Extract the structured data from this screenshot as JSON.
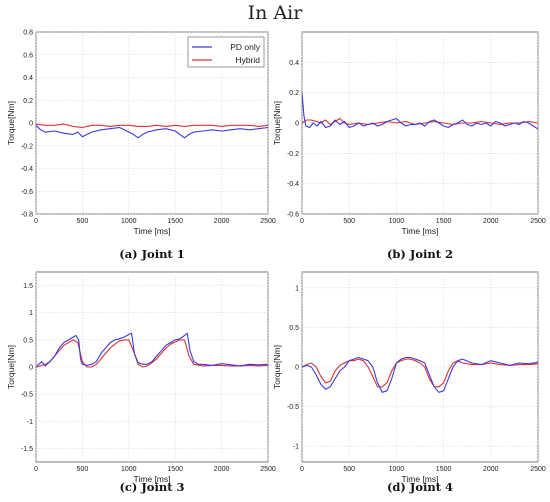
{
  "figure": {
    "title": "In Air"
  },
  "colors": {
    "pd_only": "#3a3ae0",
    "hybrid": "#e03030"
  },
  "legend": {
    "pd_only": "PD only",
    "hybrid": "Hybrid"
  },
  "chart_data": [
    {
      "type": "line",
      "caption": "(a) Joint 1",
      "xlabel": "Time [ms]",
      "ylabel": "Torque[Nm]",
      "xlim": [
        0,
        2500
      ],
      "ylim": [
        -0.8,
        0.8
      ],
      "xticks": [
        0,
        500,
        1000,
        1500,
        2000,
        2500
      ],
      "yticks": [
        -0.8,
        -0.6,
        -0.4,
        -0.2,
        0,
        0.2,
        0.4,
        0.6,
        0.8
      ],
      "ytick_labels": [
        "-0.8",
        "-0.6",
        "-0.4",
        "-0.2",
        "0",
        "0.2",
        "0.4",
        "0.6",
        "0.8"
      ],
      "grid": true,
      "legend": "top-right",
      "series": [
        {
          "name": "PD only",
          "color": "#3a3ae0",
          "x": [
            0,
            50,
            100,
            200,
            300,
            400,
            450,
            500,
            550,
            600,
            700,
            800,
            900,
            950,
            1000,
            1050,
            1100,
            1150,
            1200,
            1300,
            1400,
            1500,
            1550,
            1600,
            1650,
            1700,
            1800,
            1900,
            2000,
            2100,
            2200,
            2300,
            2400,
            2500
          ],
          "y": [
            -0.02,
            -0.06,
            -0.08,
            -0.07,
            -0.09,
            -0.1,
            -0.08,
            -0.12,
            -0.1,
            -0.08,
            -0.06,
            -0.05,
            -0.04,
            -0.06,
            -0.08,
            -0.1,
            -0.13,
            -0.1,
            -0.08,
            -0.06,
            -0.05,
            -0.07,
            -0.1,
            -0.13,
            -0.1,
            -0.08,
            -0.07,
            -0.06,
            -0.07,
            -0.06,
            -0.05,
            -0.06,
            -0.05,
            -0.04
          ]
        },
        {
          "name": "Hybrid",
          "color": "#e03030",
          "x": [
            0,
            100,
            200,
            300,
            400,
            500,
            600,
            700,
            800,
            900,
            1000,
            1100,
            1200,
            1300,
            1400,
            1500,
            1600,
            1700,
            1800,
            1900,
            2000,
            2100,
            2200,
            2300,
            2400,
            2500
          ],
          "y": [
            -0.01,
            -0.02,
            -0.02,
            -0.01,
            -0.03,
            -0.04,
            -0.02,
            -0.02,
            -0.03,
            -0.02,
            -0.02,
            -0.03,
            -0.03,
            -0.02,
            -0.03,
            -0.02,
            -0.03,
            -0.02,
            -0.02,
            -0.02,
            -0.03,
            -0.02,
            -0.02,
            -0.02,
            -0.03,
            -0.02
          ]
        }
      ]
    },
    {
      "type": "line",
      "caption": "(b) Joint 2",
      "xlabel": "Time [ms]",
      "ylabel": "Torque[Nm]",
      "xlim": [
        0,
        2500
      ],
      "ylim": [
        -0.6,
        0.6
      ],
      "xticks": [
        0,
        500,
        1000,
        1500,
        2000,
        2500
      ],
      "yticks": [
        -0.6,
        -0.4,
        -0.2,
        0,
        0.2,
        0.4
      ],
      "ytick_labels": [
        "-0.6",
        "-0.4",
        "-0.2",
        "0",
        "0.2",
        "0.4"
      ],
      "grid": true,
      "series": [
        {
          "name": "PD only",
          "color": "#3a3ae0",
          "x": [
            0,
            20,
            40,
            80,
            120,
            160,
            200,
            250,
            300,
            350,
            400,
            450,
            500,
            550,
            600,
            650,
            700,
            750,
            800,
            850,
            900,
            950,
            1000,
            1050,
            1100,
            1150,
            1200,
            1250,
            1300,
            1350,
            1400,
            1450,
            1500,
            1550,
            1600,
            1650,
            1700,
            1750,
            1800,
            1850,
            1900,
            1950,
            2000,
            2050,
            2100,
            2150,
            2200,
            2250,
            2300,
            2350,
            2400,
            2450,
            2500
          ],
          "y": [
            0.2,
            0.05,
            -0.02,
            -0.03,
            0.0,
            -0.02,
            0.01,
            -0.03,
            -0.02,
            0.02,
            -0.01,
            0.01,
            -0.03,
            -0.02,
            0.0,
            -0.02,
            -0.01,
            0.0,
            -0.02,
            -0.01,
            0.01,
            0.02,
            0.03,
            0.0,
            -0.02,
            -0.01,
            -0.01,
            0.0,
            -0.02,
            0.01,
            0.02,
            0.0,
            -0.02,
            -0.03,
            -0.01,
            0.0,
            0.02,
            -0.01,
            -0.02,
            0.0,
            -0.01,
            0.0,
            -0.02,
            0.01,
            0.0,
            -0.02,
            -0.01,
            0.0,
            -0.01,
            0.01,
            0.0,
            -0.02,
            -0.04
          ]
        },
        {
          "name": "Hybrid",
          "color": "#e03030",
          "x": [
            0,
            50,
            100,
            150,
            200,
            250,
            300,
            350,
            400,
            450,
            500,
            600,
            700,
            800,
            900,
            1000,
            1100,
            1200,
            1300,
            1400,
            1500,
            1600,
            1700,
            1800,
            1900,
            2000,
            2100,
            2200,
            2300,
            2400,
            2500
          ],
          "y": [
            0.0,
            0.02,
            0.02,
            0.01,
            0.0,
            0.02,
            -0.01,
            0.01,
            0.03,
            0.0,
            -0.01,
            0.0,
            -0.01,
            0.0,
            0.01,
            0.0,
            0.01,
            -0.01,
            0.0,
            0.01,
            0.0,
            -0.01,
            0.0,
            0.0,
            0.01,
            0.0,
            -0.01,
            0.0,
            0.0,
            0.01,
            0.0
          ]
        }
      ]
    },
    {
      "type": "line",
      "caption": "(c) Joint 3",
      "xlabel": "Time [ms]",
      "ylabel": "Torque[Nm]",
      "xlim": [
        0,
        2500
      ],
      "ylim": [
        -1.75,
        1.75
      ],
      "xticks": [
        0,
        500,
        1000,
        1500,
        2000,
        2500
      ],
      "yticks": [
        -1.5,
        -1,
        -0.5,
        0,
        0.5,
        1,
        1.5
      ],
      "ytick_labels": [
        "-1.5",
        "-1",
        "-0.5",
        "0",
        "0.5",
        "1",
        "1.5"
      ],
      "grid": true,
      "series": [
        {
          "name": "PD only",
          "color": "#3a3ae0",
          "x": [
            0,
            30,
            60,
            100,
            150,
            200,
            250,
            300,
            350,
            400,
            430,
            460,
            480,
            500,
            550,
            600,
            650,
            700,
            750,
            800,
            850,
            900,
            950,
            1000,
            1030,
            1060,
            1100,
            1150,
            1200,
            1250,
            1300,
            1350,
            1400,
            1450,
            1500,
            1550,
            1600,
            1630,
            1660,
            1700,
            1750,
            1800,
            1900,
            2000,
            2100,
            2200,
            2300,
            2400,
            2500
          ],
          "y": [
            0.0,
            0.05,
            0.1,
            0.02,
            0.1,
            0.2,
            0.35,
            0.45,
            0.5,
            0.55,
            0.58,
            0.5,
            0.15,
            0.05,
            0.03,
            0.05,
            0.1,
            0.25,
            0.35,
            0.45,
            0.5,
            0.52,
            0.55,
            0.6,
            0.62,
            0.25,
            0.08,
            0.05,
            0.05,
            0.1,
            0.2,
            0.3,
            0.4,
            0.45,
            0.5,
            0.52,
            0.58,
            0.62,
            0.3,
            0.1,
            0.05,
            0.05,
            0.03,
            0.06,
            0.04,
            0.02,
            0.05,
            0.04,
            0.05
          ]
        },
        {
          "name": "Hybrid",
          "color": "#e03030",
          "x": [
            0,
            50,
            100,
            150,
            200,
            250,
            300,
            350,
            400,
            450,
            500,
            550,
            600,
            650,
            700,
            750,
            800,
            850,
            900,
            950,
            1000,
            1050,
            1100,
            1150,
            1200,
            1250,
            1300,
            1350,
            1400,
            1450,
            1500,
            1550,
            1600,
            1650,
            1700,
            1800,
            1900,
            2000,
            2100,
            2200,
            2300,
            2400,
            2500
          ],
          "y": [
            0.0,
            0.02,
            0.05,
            0.1,
            0.2,
            0.3,
            0.4,
            0.45,
            0.5,
            0.45,
            0.1,
            0.0,
            0.0,
            0.05,
            0.15,
            0.25,
            0.35,
            0.42,
            0.48,
            0.5,
            0.5,
            0.3,
            0.05,
            0.0,
            0.02,
            0.08,
            0.15,
            0.25,
            0.35,
            0.42,
            0.46,
            0.5,
            0.5,
            0.2,
            0.05,
            0.02,
            0.03,
            0.03,
            0.02,
            0.02,
            0.03,
            0.02,
            0.03
          ]
        }
      ]
    },
    {
      "type": "line",
      "caption": "(d) Joint 4",
      "xlabel": "Time [ms]",
      "ylabel": "Torque[Nm]",
      "xlim": [
        0,
        2500
      ],
      "ylim": [
        -1.2,
        1.2
      ],
      "xticks": [
        0,
        500,
        1000,
        1500,
        2000,
        2500
      ],
      "yticks": [
        -1,
        -0.5,
        0,
        0.5,
        1
      ],
      "ytick_labels": [
        "-1",
        "-0.5",
        "0",
        "0.5",
        "1"
      ],
      "grid": true,
      "series": [
        {
          "name": "PD only",
          "color": "#3a3ae0",
          "x": [
            0,
            50,
            100,
            150,
            200,
            250,
            300,
            350,
            400,
            450,
            500,
            550,
            600,
            650,
            700,
            750,
            800,
            850,
            900,
            950,
            1000,
            1050,
            1100,
            1150,
            1200,
            1250,
            1300,
            1350,
            1400,
            1450,
            1500,
            1550,
            1600,
            1650,
            1700,
            1800,
            1900,
            2000,
            2100,
            2200,
            2300,
            2400,
            2500
          ],
          "y": [
            0.0,
            0.02,
            0.0,
            -0.1,
            -0.22,
            -0.28,
            -0.25,
            -0.15,
            -0.05,
            0.0,
            0.08,
            0.1,
            0.12,
            0.1,
            0.08,
            0.0,
            -0.2,
            -0.32,
            -0.3,
            -0.15,
            0.05,
            0.1,
            0.12,
            0.12,
            0.1,
            0.08,
            0.05,
            -0.1,
            -0.25,
            -0.32,
            -0.3,
            -0.15,
            0.0,
            0.08,
            0.1,
            0.05,
            0.03,
            0.08,
            0.05,
            0.02,
            0.05,
            0.04,
            0.06
          ]
        },
        {
          "name": "Hybrid",
          "color": "#e03030",
          "x": [
            0,
            50,
            100,
            150,
            200,
            250,
            300,
            350,
            400,
            450,
            500,
            550,
            600,
            650,
            700,
            750,
            800,
            850,
            900,
            950,
            1000,
            1050,
            1100,
            1150,
            1200,
            1250,
            1300,
            1350,
            1400,
            1450,
            1500,
            1550,
            1600,
            1650,
            1700,
            1800,
            1900,
            2000,
            2100,
            2200,
            2300,
            2400,
            2500
          ],
          "y": [
            0.0,
            0.03,
            0.05,
            0.0,
            -0.12,
            -0.2,
            -0.18,
            -0.05,
            0.02,
            0.05,
            0.08,
            0.08,
            0.1,
            0.08,
            0.0,
            -0.12,
            -0.25,
            -0.25,
            -0.2,
            -0.05,
            0.05,
            0.08,
            0.1,
            0.1,
            0.08,
            0.05,
            0.0,
            -0.15,
            -0.25,
            -0.25,
            -0.2,
            -0.05,
            0.05,
            0.08,
            0.05,
            0.03,
            0.03,
            0.05,
            0.03,
            0.02,
            0.03,
            0.03,
            0.04
          ]
        }
      ]
    }
  ]
}
